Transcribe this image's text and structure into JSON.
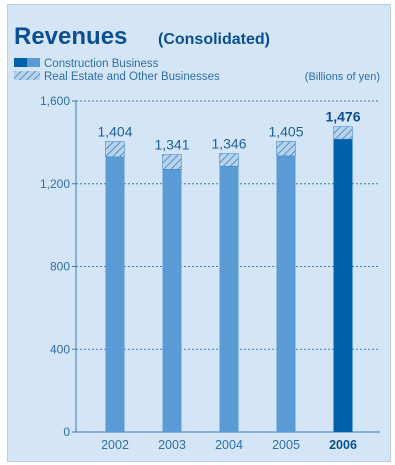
{
  "chart_data": {
    "type": "bar",
    "stacked": true,
    "title": "Revenues",
    "subtitle": "(Consolidated)",
    "unit_label": "(Billions of yen)",
    "categories": [
      "2002",
      "2003",
      "2004",
      "2005",
      "2006"
    ],
    "highlight_category": "2006",
    "series": [
      {
        "name": "Construction Business",
        "values": [
          1330,
          1270,
          1285,
          1335,
          1416
        ]
      },
      {
        "name": "Real Estate and Other Businesses",
        "values": [
          74,
          71,
          61,
          70,
          60
        ]
      }
    ],
    "totals": [
      1404,
      1341,
      1346,
      1405,
      1476
    ],
    "total_labels": [
      "1,404",
      "1,341",
      "1,346",
      "1,405",
      "1,476"
    ],
    "ylim": [
      0,
      1600
    ],
    "yticks": [
      0,
      400,
      800,
      1200,
      1600
    ],
    "ytick_labels": [
      "0",
      "400",
      "800",
      "1,200",
      "1,600"
    ],
    "grid": true,
    "legend_position": "top-left"
  },
  "colors": {
    "panel_background": "#d4e6f5",
    "bar_construction": "#5b9bd5",
    "bar_construction_highlight": "#0061a8",
    "hatch_background": "#b8d4ec",
    "hatch_line": "#3d7fc0",
    "text": "#2f6ea8",
    "title": "#0b4f93",
    "grid_line": "#3a7cc0"
  }
}
